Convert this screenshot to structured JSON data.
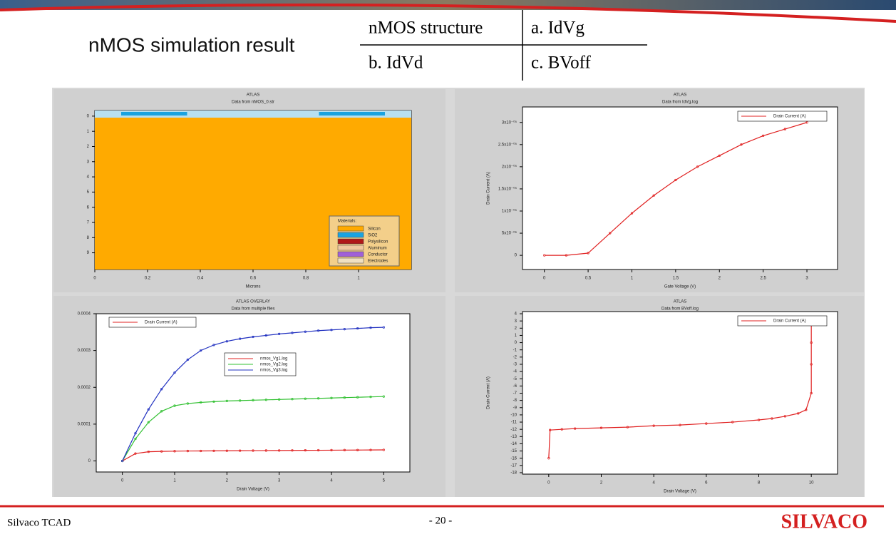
{
  "header": {
    "title": "nMOS simulation result"
  },
  "table": {
    "rows": [
      [
        "nMOS structure",
        "a. IdVg"
      ],
      [
        "b. IdVd",
        "c. BVoff"
      ]
    ]
  },
  "footer": {
    "left": "Silvaco TCAD",
    "page": "- 20 -",
    "logo": "SILVACO"
  },
  "chart_data": [
    {
      "type": "structure",
      "title": "ATLAS",
      "subtitle": "Data from nMOS_0.str",
      "xlabel": "Microns",
      "xlim": [
        0,
        1.2
      ],
      "ylim": [
        10.1,
        -0.37
      ],
      "xticks": [
        0,
        0.2,
        0.4,
        0.6,
        0.8,
        1
      ],
      "yticks": [
        0,
        1,
        2,
        3,
        4,
        5,
        6,
        7,
        8,
        9
      ],
      "legend_title": "Materials:",
      "materials": [
        {
          "name": "Silicon",
          "color": "#ffaa00"
        },
        {
          "name": "SiO2",
          "color": "#1aa3e0"
        },
        {
          "name": "Polysilicon",
          "color": "#b01818"
        },
        {
          "name": "Aluminum",
          "color": "#f0c8a0"
        },
        {
          "name": "Conductor",
          "color": "#a060d8"
        },
        {
          "name": "Electrodes",
          "color": "#f0e0c0"
        }
      ]
    },
    {
      "type": "line",
      "title": "ATLAS",
      "subtitle": "Data from IdVg.log",
      "xlabel": "Gate Voltage (V)",
      "ylabel": "Drain Current (A)",
      "xlim": [
        -0.25,
        3.35
      ],
      "ylim": [
        -3.2e-06,
        3.35e-05
      ],
      "xticks": [
        0,
        0.5,
        1,
        1.5,
        2,
        2.5,
        3
      ],
      "yticks": [
        0,
        {
          "value": 5e-06,
          "label": "5x10⁻⁰⁶"
        },
        {
          "value": 1e-05,
          "label": "1x10⁻⁰⁵"
        },
        {
          "value": 1.5e-05,
          "label": "1.5x10⁻⁰⁵"
        },
        {
          "value": 2e-05,
          "label": "2x10⁻⁰⁵"
        },
        {
          "value": 2.5e-05,
          "label": "2.5x10⁻⁰⁵"
        },
        {
          "value": 3e-05,
          "label": "3x10⁻⁰⁵"
        }
      ],
      "x": [
        0,
        0.25,
        0.5,
        0.75,
        1,
        1.25,
        1.5,
        1.75,
        2,
        2.25,
        2.5,
        2.75,
        3
      ],
      "series": [
        {
          "name": "Drain Current (A)",
          "color": "#e02020",
          "values": [
            0,
            0,
            5e-07,
            5e-06,
            9.5e-06,
            1.35e-05,
            1.7e-05,
            2e-05,
            2.25e-05,
            2.5e-05,
            2.7e-05,
            2.85e-05,
            3e-05
          ]
        }
      ]
    },
    {
      "type": "line",
      "title": "ATLAS OVERLAY",
      "subtitle": "Data from multiple files",
      "xlabel": "Drain Voltage (V)",
      "legend_label": "Drain Current (A)",
      "xlim": [
        -0.5,
        5.5
      ],
      "ylim": [
        -3e-05,
        0.0004
      ],
      "xticks": [
        0,
        1,
        2,
        3,
        4,
        5
      ],
      "yticks": [
        0,
        0.0001,
        0.0002,
        0.0003,
        0.0004
      ],
      "x": [
        0,
        0.25,
        0.5,
        0.75,
        1,
        1.25,
        1.5,
        1.75,
        2,
        2.25,
        2.5,
        2.75,
        3,
        3.25,
        3.5,
        3.75,
        4,
        4.25,
        4.5,
        4.75,
        5
      ],
      "series": [
        {
          "name": "nmos_Vg1.log",
          "color": "#e02020",
          "values": [
            0,
            2e-05,
            2.5e-05,
            2.6e-05,
            2.65e-05,
            2.7e-05,
            2.72e-05,
            2.74e-05,
            2.76e-05,
            2.78e-05,
            2.8e-05,
            2.82e-05,
            2.84e-05,
            2.86e-05,
            2.88e-05,
            2.9e-05,
            2.92e-05,
            2.94e-05,
            2.96e-05,
            2.98e-05,
            3e-05
          ]
        },
        {
          "name": "nmos_Vg2.log",
          "color": "#30c030",
          "values": [
            0,
            6e-05,
            0.000105,
            0.000135,
            0.00015,
            0.000156,
            0.000159,
            0.000161,
            0.000163,
            0.000164,
            0.000165,
            0.000166,
            0.000167,
            0.000168,
            0.000169,
            0.00017,
            0.000171,
            0.000172,
            0.000173,
            0.000174,
            0.000175
          ]
        },
        {
          "name": "nmos_Vg3.log",
          "color": "#2030c0",
          "values": [
            0,
            7.5e-05,
            0.00014,
            0.000195,
            0.00024,
            0.000275,
            0.0003,
            0.000315,
            0.000325,
            0.000332,
            0.000337,
            0.000341,
            0.000345,
            0.000348,
            0.000351,
            0.000354,
            0.000356,
            0.000358,
            0.00036,
            0.000362,
            0.000363
          ]
        }
      ]
    },
    {
      "type": "line",
      "title": "ATLAS",
      "subtitle": "Data from BVoff.log",
      "xlabel": "Drain Voltage (V)",
      "ylabel": "Drain Current (A)",
      "xlim": [
        -1,
        11
      ],
      "ylim": [
        -18.2,
        4.3
      ],
      "xticks": [
        0,
        2,
        4,
        6,
        8,
        10
      ],
      "yticks": [
        -18,
        -17,
        -16,
        -15,
        -14,
        -13,
        -12,
        -11,
        -10,
        -9,
        -8,
        -7,
        -6,
        -5,
        -4,
        -3,
        -2,
        -1,
        0,
        1,
        2,
        3,
        4
      ],
      "x": [
        0,
        0.05,
        0.5,
        1,
        2,
        3,
        4,
        5,
        6,
        7,
        8,
        8.5,
        9,
        9.5,
        9.8,
        10,
        10,
        10,
        10
      ],
      "series": [
        {
          "name": "Drain Current (A)",
          "color": "#e02020",
          "values": [
            -16,
            -12.1,
            -12,
            -11.9,
            -11.8,
            -11.7,
            -11.5,
            -11.4,
            -11.2,
            -11,
            -10.7,
            -10.5,
            -10.2,
            -9.8,
            -9.3,
            -7,
            -3,
            0,
            3
          ]
        }
      ]
    }
  ]
}
